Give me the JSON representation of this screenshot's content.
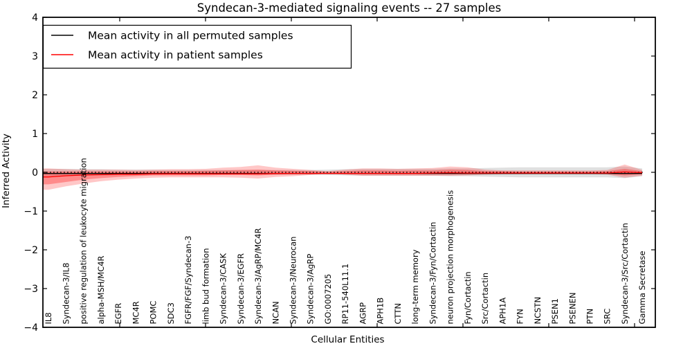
{
  "figure": {
    "background": "#ffffff",
    "accent_red": "#ff0000",
    "line_black": "#000000"
  },
  "chart_data": {
    "type": "line",
    "title": "Syndecan-3-mediated signaling events -- 27 samples",
    "xlabel": "Cellular Entities",
    "ylabel": "Inferred Activity",
    "ylim": [
      -4,
      4
    ],
    "yticks": [
      -4,
      -3,
      -2,
      -1,
      0,
      1,
      2,
      3,
      4
    ],
    "grid": false,
    "legend_position": "upper left",
    "zero_line": {
      "y": 0,
      "style": "dotted",
      "color": "#000000"
    },
    "categories": [
      "IL8",
      "Syndecan-3/IL8",
      "positive regulation of leukocyte migration",
      "alpha-MSH/MC4R",
      "EGFR",
      "MC4R",
      "POMC",
      "SDC3",
      "FGFR/FGF/Syndecan-3",
      "limb bud formation",
      "Syndecan-3/CASK",
      "Syndecan-3/EGFR",
      "Syndecan-3/AgRP/MC4R",
      "NCAN",
      "Syndecan-3/Neurocan",
      "Syndecan-3/AgRP",
      "GO:0007205",
      "RP11-540L11.1",
      "AGRP",
      "APH1B",
      "CTTN",
      "long-term memory",
      "Syndecan-3/Fyn/Cortactin",
      "neuron projection morphogenesis",
      "Fyn/Cortactin",
      "Src/Cortactin",
      "APH1A",
      "FYN",
      "NCSTN",
      "PSEN1",
      "PSENEN",
      "PTN",
      "SRC",
      "Syndecan-3/Src/Cortactin",
      "Gamma Secretase"
    ],
    "series": [
      {
        "name": "Mean activity in all permuted samples",
        "color": "#000000",
        "style": "solid",
        "values": [
          -0.03,
          -0.03,
          -0.03,
          -0.03,
          -0.03,
          -0.03,
          -0.03,
          -0.03,
          -0.03,
          -0.03,
          -0.03,
          -0.03,
          -0.03,
          -0.03,
          -0.03,
          -0.03,
          -0.03,
          -0.03,
          -0.03,
          -0.03,
          -0.03,
          -0.03,
          -0.03,
          -0.03,
          -0.03,
          -0.03,
          -0.03,
          -0.03,
          -0.03,
          -0.03,
          -0.03,
          -0.03,
          -0.03,
          -0.03,
          -0.03
        ]
      },
      {
        "name": "Mean activity in patient samples",
        "color": "#ff0000",
        "style": "solid",
        "values": [
          -0.12,
          -0.09,
          -0.07,
          -0.06,
          -0.05,
          -0.05,
          -0.04,
          -0.04,
          -0.04,
          -0.04,
          -0.04,
          -0.04,
          -0.04,
          -0.03,
          -0.03,
          -0.03,
          -0.03,
          -0.03,
          -0.03,
          -0.03,
          -0.03,
          -0.03,
          -0.02,
          -0.01,
          -0.02,
          -0.02,
          -0.02,
          -0.02,
          -0.02,
          -0.02,
          -0.02,
          -0.02,
          -0.02,
          0.01,
          -0.01
        ]
      }
    ],
    "bands": [
      {
        "name": "permuted-samples-spread",
        "color": "#999999",
        "opacity": 0.3,
        "upper": [
          0.09,
          0.09,
          0.08,
          0.08,
          0.07,
          0.07,
          0.07,
          0.06,
          0.06,
          0.06,
          0.06,
          0.06,
          0.06,
          0.06,
          0.06,
          0.06,
          0.07,
          0.08,
          0.09,
          0.09,
          0.09,
          0.09,
          0.09,
          0.1,
          0.1,
          0.11,
          0.12,
          0.13,
          0.13,
          0.13,
          0.13,
          0.13,
          0.13,
          0.15,
          0.1
        ],
        "lower": [
          -0.09,
          -0.09,
          -0.08,
          -0.08,
          -0.07,
          -0.07,
          -0.07,
          -0.06,
          -0.06,
          -0.06,
          -0.06,
          -0.06,
          -0.06,
          -0.06,
          -0.06,
          -0.06,
          -0.07,
          -0.08,
          -0.09,
          -0.09,
          -0.09,
          -0.09,
          -0.09,
          -0.1,
          -0.1,
          -0.11,
          -0.12,
          -0.13,
          -0.13,
          -0.13,
          -0.13,
          -0.13,
          -0.13,
          -0.15,
          -0.1
        ]
      },
      {
        "name": "patient-samples-outer-spread",
        "color": "#ff0000",
        "opacity": 0.22,
        "upper": [
          0.1,
          0.08,
          0.07,
          0.07,
          0.07,
          0.06,
          0.07,
          0.08,
          0.08,
          0.09,
          0.12,
          0.14,
          0.18,
          0.12,
          0.09,
          0.06,
          0.03,
          0.07,
          0.1,
          0.1,
          0.09,
          0.1,
          0.11,
          0.15,
          0.13,
          0.07,
          0.05,
          0.05,
          0.05,
          0.05,
          0.05,
          0.05,
          0.06,
          0.2,
          0.06
        ],
        "lower": [
          -0.45,
          -0.36,
          -0.29,
          -0.23,
          -0.19,
          -0.16,
          -0.14,
          -0.13,
          -0.13,
          -0.13,
          -0.13,
          -0.14,
          -0.16,
          -0.12,
          -0.1,
          -0.07,
          -0.03,
          -0.06,
          -0.09,
          -0.09,
          -0.09,
          -0.09,
          -0.09,
          -0.09,
          -0.08,
          -0.06,
          -0.05,
          -0.05,
          -0.05,
          -0.05,
          -0.05,
          -0.05,
          -0.06,
          -0.14,
          -0.09
        ]
      },
      {
        "name": "patient-samples-inner-spread",
        "color": "#ff0000",
        "opacity": 0.3,
        "upper": [
          0.02,
          0.02,
          0.02,
          0.02,
          0.02,
          0.02,
          0.03,
          0.03,
          0.03,
          0.04,
          0.05,
          0.06,
          0.07,
          0.05,
          0.04,
          0.03,
          0.01,
          0.03,
          0.05,
          0.05,
          0.04,
          0.05,
          0.05,
          0.07,
          0.06,
          0.03,
          0.03,
          0.02,
          0.02,
          0.02,
          0.02,
          0.02,
          0.03,
          0.09,
          0.03
        ],
        "lower": [
          -0.31,
          -0.25,
          -0.19,
          -0.15,
          -0.12,
          -0.1,
          -0.08,
          -0.08,
          -0.08,
          -0.08,
          -0.07,
          -0.07,
          -0.08,
          -0.06,
          -0.05,
          -0.04,
          -0.02,
          -0.04,
          -0.05,
          -0.05,
          -0.05,
          -0.05,
          -0.05,
          -0.05,
          -0.05,
          -0.04,
          -0.03,
          -0.03,
          -0.03,
          -0.03,
          -0.03,
          -0.03,
          -0.04,
          -0.08,
          -0.05
        ]
      }
    ]
  }
}
